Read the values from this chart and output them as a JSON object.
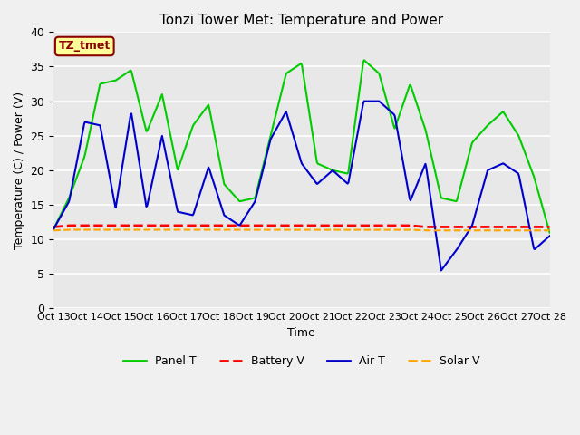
{
  "title": "Tonzi Tower Met: Temperature and Power",
  "ylabel": "Temperature (C) / Power (V)",
  "xlabel": "Time",
  "tag": "TZ_tmet",
  "tag_bg": "#FFFF99",
  "tag_border": "#8B0000",
  "tag_text_color": "#8B0000",
  "background_color": "#E8E8E8",
  "fig_bg": "#F0F0F0",
  "ylim": [
    0,
    40
  ],
  "yticks": [
    0,
    5,
    10,
    15,
    20,
    25,
    30,
    35,
    40
  ],
  "xtick_labels": [
    "Oct 13",
    "Oct 14",
    "Oct 15",
    "Oct 16",
    "Oct 17",
    "Oct 18",
    "Oct 19",
    "Oct 20",
    "Oct 21",
    "Oct 22",
    "Oct 23",
    "Oct 24",
    "Oct 25",
    "Oct 26",
    "Oct 27",
    "Oct 28"
  ],
  "num_days": 15,
  "panel_t_color": "#00CC00",
  "battery_v_color": "#FF0000",
  "air_t_color": "#0000CC",
  "solar_v_color": "#FFA500",
  "panel_t": [
    11.5,
    16.0,
    22.0,
    32.5,
    33.0,
    34.5,
    25.5,
    31.0,
    20.0,
    26.5,
    29.5,
    18.0,
    15.5,
    16.0,
    25.0,
    34.0,
    35.5,
    21.0,
    20.0,
    19.5,
    36.0,
    34.0,
    26.0,
    32.5,
    25.8,
    16.0,
    15.5,
    24.0,
    26.5,
    28.5,
    25.0,
    19.0,
    11.0
  ],
  "air_t": [
    11.5,
    15.5,
    27.0,
    26.5,
    14.5,
    28.5,
    14.5,
    25.0,
    14.0,
    13.5,
    20.5,
    13.5,
    12.0,
    15.5,
    24.5,
    28.5,
    21.0,
    18.0,
    20.0,
    18.0,
    30.0,
    30.0,
    28.0,
    15.5,
    21.0,
    5.5,
    8.5,
    12.0,
    20.0,
    21.0,
    19.5,
    8.5,
    10.5
  ],
  "battery_v": [
    11.8,
    12.0,
    12.0,
    12.0,
    12.0,
    12.0,
    12.0,
    12.0,
    12.0,
    12.0,
    12.0,
    12.0,
    12.0,
    12.0,
    12.0,
    12.0,
    12.0,
    12.0,
    12.0,
    12.0,
    12.0,
    12.0,
    12.0,
    12.0,
    11.8,
    11.8,
    11.8,
    11.8,
    11.8,
    11.8,
    11.8,
    11.8,
    11.8
  ],
  "solar_v": [
    11.3,
    11.4,
    11.4,
    11.4,
    11.4,
    11.4,
    11.4,
    11.4,
    11.4,
    11.4,
    11.4,
    11.4,
    11.4,
    11.4,
    11.4,
    11.4,
    11.4,
    11.4,
    11.4,
    11.4,
    11.4,
    11.4,
    11.4,
    11.4,
    11.3,
    11.3,
    11.3,
    11.3,
    11.3,
    11.3,
    11.3,
    11.3,
    11.3
  ]
}
